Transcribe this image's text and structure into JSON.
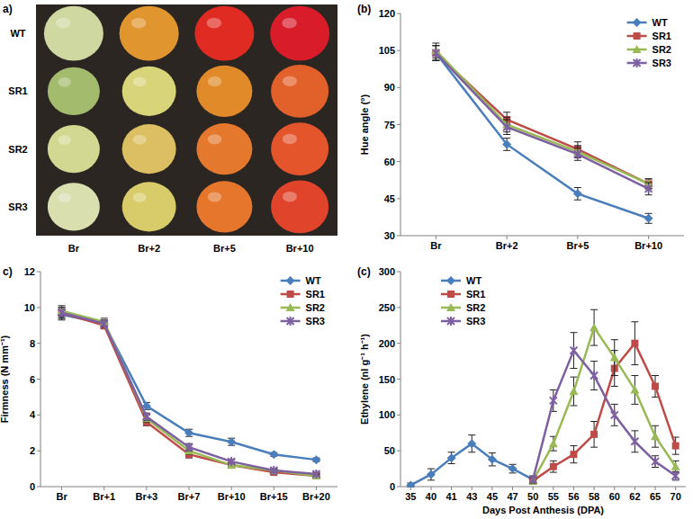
{
  "photo_panel": {
    "panel_label": "a)",
    "rows": [
      "WT",
      "SR1",
      "SR2",
      "SR3"
    ],
    "columns": [
      "Br",
      "Br+2",
      "Br+5",
      "Br+10"
    ],
    "fruit_colors": [
      [
        "#cfd8a0",
        "#e0952e",
        "#e02b22",
        "#d81c2a"
      ],
      [
        "#a3bb6c",
        "#d8d47a",
        "#e08a2a",
        "#e2602a"
      ],
      [
        "#d2d891",
        "#dcbf62",
        "#e4782c",
        "#e4552c"
      ],
      [
        "#dadfb0",
        "#d8cc6a",
        "#e5762c",
        "#e0452c"
      ]
    ]
  },
  "chart_data": [
    {
      "type": "line",
      "panel_label": "(b)",
      "ylabel": "Hue angle (°)",
      "categories": [
        "Br",
        "Br+2",
        "Br+5",
        "Br+10"
      ],
      "ylim": [
        30,
        120
      ],
      "yticks": [
        30,
        45,
        60,
        75,
        90,
        105,
        120
      ],
      "grid": false,
      "legend": "upper right",
      "series": [
        {
          "name": "WT",
          "color": "#4a7ebb",
          "marker": "diamond",
          "values": [
            104,
            67,
            47,
            37
          ],
          "errors": [
            3,
            2.5,
            2.5,
            2
          ]
        },
        {
          "name": "SR1",
          "color": "#be4b48",
          "marker": "square",
          "values": [
            104,
            77,
            65,
            51
          ],
          "errors": [
            3,
            3,
            3,
            2
          ]
        },
        {
          "name": "SR2",
          "color": "#98b954",
          "marker": "triangle",
          "values": [
            105,
            75,
            64,
            51
          ],
          "errors": [
            3,
            3,
            2.5,
            2
          ]
        },
        {
          "name": "SR3",
          "color": "#7d60a0",
          "marker": "x",
          "values": [
            104,
            74,
            63,
            49
          ],
          "errors": [
            3,
            3,
            2.5,
            2.5
          ]
        }
      ]
    },
    {
      "type": "line",
      "panel_label": "c)",
      "ylabel": "Firmness (N mm⁻¹)",
      "categories": [
        "Br",
        "Br+1",
        "Br+3",
        "Br+7",
        "Br+10",
        "Br+15",
        "Br+20"
      ],
      "ylim": [
        0,
        12
      ],
      "yticks": [
        0,
        2,
        4,
        6,
        8,
        10,
        12
      ],
      "grid": false,
      "legend": "upper right",
      "series": [
        {
          "name": "WT",
          "color": "#4a7ebb",
          "marker": "diamond",
          "values": [
            9.6,
            9.1,
            4.5,
            3.0,
            2.5,
            1.8,
            1.5
          ],
          "errors": [
            0.3,
            0.2,
            0.2,
            0.2,
            0.2,
            0.1,
            0.1
          ]
        },
        {
          "name": "SR1",
          "color": "#be4b48",
          "marker": "square",
          "values": [
            9.7,
            9.0,
            3.6,
            1.8,
            1.2,
            0.8,
            0.6
          ],
          "errors": [
            0.3,
            0.2,
            0.2,
            0.2,
            0.1,
            0.1,
            0.1
          ]
        },
        {
          "name": "SR2",
          "color": "#98b954",
          "marker": "triangle",
          "values": [
            9.8,
            9.2,
            3.8,
            2.0,
            1.2,
            0.9,
            0.6
          ],
          "errors": [
            0.3,
            0.2,
            0.2,
            0.2,
            0.1,
            0.1,
            0.1
          ]
        },
        {
          "name": "SR3",
          "color": "#7d60a0",
          "marker": "x",
          "values": [
            9.7,
            9.1,
            3.9,
            2.2,
            1.4,
            0.9,
            0.7
          ],
          "errors": [
            0.3,
            0.2,
            0.2,
            0.2,
            0.1,
            0.1,
            0.1
          ]
        }
      ]
    },
    {
      "type": "line",
      "panel_label": "(c)",
      "ylabel": "Ethylene (nl g⁻¹ h⁻¹)",
      "xlabel": "Days Post Anthesis (DPA)",
      "categories": [
        "35",
        "40",
        "41",
        "43",
        "45",
        "47",
        "50",
        "55",
        "56",
        "58",
        "60",
        "62",
        "65",
        "70"
      ],
      "ylim": [
        0,
        300
      ],
      "yticks": [
        0,
        50,
        100,
        150,
        200,
        250,
        300
      ],
      "grid": false,
      "legend": "upper left",
      "series": [
        {
          "name": "WT",
          "color": "#4a7ebb",
          "marker": "diamond",
          "values": [
            2,
            17,
            40,
            60,
            38,
            25,
            10,
            null,
            null,
            null,
            null,
            null,
            null,
            null
          ],
          "errors": [
            3,
            8,
            8,
            12,
            9,
            6,
            4,
            null,
            null,
            null,
            null,
            null,
            null,
            null
          ]
        },
        {
          "name": "SR1",
          "color": "#be4b48",
          "marker": "square",
          "values": [
            null,
            null,
            null,
            null,
            null,
            null,
            8,
            28,
            45,
            73,
            165,
            200,
            140,
            57
          ],
          "errors": [
            null,
            null,
            null,
            null,
            null,
            null,
            4,
            8,
            12,
            18,
            25,
            30,
            15,
            12
          ]
        },
        {
          "name": "SR2",
          "color": "#98b954",
          "marker": "triangle",
          "values": [
            null,
            null,
            null,
            null,
            null,
            null,
            8,
            60,
            133,
            222,
            180,
            135,
            70,
            28
          ],
          "errors": [
            null,
            null,
            null,
            null,
            null,
            null,
            4,
            10,
            20,
            25,
            25,
            20,
            15,
            8
          ]
        },
        {
          "name": "SR3",
          "color": "#7d60a0",
          "marker": "x",
          "values": [
            null,
            null,
            null,
            null,
            null,
            null,
            10,
            120,
            190,
            155,
            100,
            63,
            35,
            15
          ],
          "errors": [
            null,
            null,
            null,
            null,
            null,
            null,
            5,
            15,
            25,
            20,
            15,
            15,
            8,
            6
          ]
        }
      ]
    }
  ]
}
